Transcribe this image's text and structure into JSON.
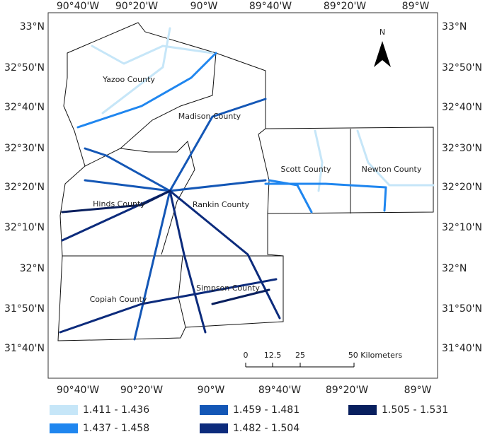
{
  "map": {
    "top_lon_labels": [
      "90°40'W",
      "90°20'W",
      "90°W",
      "89°40'W",
      "89°20'W",
      "89°W"
    ],
    "bottom_lon_labels": [
      "90°40'W",
      "90°20'W",
      "90°W",
      "89°40'W",
      "89°20'W",
      "89°W"
    ],
    "lat_labels": [
      "33°N",
      "32°50'N",
      "32°40'N",
      "32°30'N",
      "32°20'N",
      "32°10'N",
      "32°N",
      "31°50'N",
      "31°40'N"
    ],
    "counties": [
      "Yazoo County",
      "Madison County",
      "Scott County",
      "Newton County",
      "Hinds County",
      "Rankin County",
      "Simpson County",
      "Copiah County"
    ],
    "north": "N",
    "scale_bar": [
      "0",
      "12.5",
      "25",
      "50 Kilometers"
    ]
  },
  "legend": [
    {
      "label": "1.411 - 1.436",
      "color": "#c6e6f8"
    },
    {
      "label": "1.437 - 1.458",
      "color": "#1f86ef"
    },
    {
      "label": "1.459 - 1.481",
      "color": "#1457b6"
    },
    {
      "label": "1.482 - 1.504",
      "color": "#0c2b7c"
    },
    {
      "label": "1.505 - 1.531",
      "color": "#081f5e"
    }
  ]
}
